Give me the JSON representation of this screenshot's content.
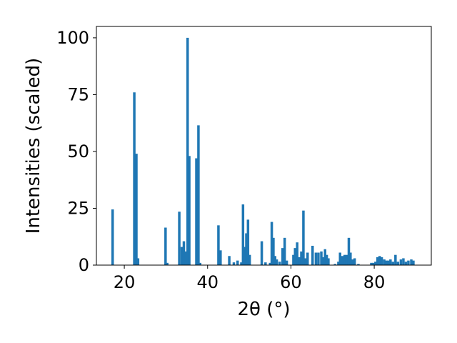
{
  "chart_data": {
    "type": "bar",
    "xlabel": "2θ (°)",
    "ylabel": "Intensities (scaled)",
    "xlim": [
      13.3,
      93.7
    ],
    "ylim": [
      0,
      105
    ],
    "xticks": [
      20,
      40,
      60,
      80
    ],
    "yticks": [
      0,
      25,
      50,
      75,
      100
    ],
    "grid": false,
    "bar_color": "#1f77b4",
    "bar_width": 0.6,
    "x": [
      17.2,
      22.4,
      22.9,
      23.3,
      29.9,
      30.3,
      33.2,
      33.8,
      34.3,
      34.8,
      35.2,
      35.6,
      37.3,
      37.8,
      38.2,
      42.6,
      43.1,
      45.2,
      46.3,
      47.2,
      48.1,
      48.5,
      48.9,
      49.3,
      49.7,
      50.1,
      53.0,
      53.9,
      55.0,
      55.4,
      55.8,
      56.2,
      56.6,
      57.3,
      58.0,
      58.5,
      59.0,
      60.6,
      61.0,
      61.5,
      62.0,
      62.5,
      63.0,
      63.5,
      64.0,
      65.2,
      66.0,
      66.6,
      67.3,
      67.8,
      68.2,
      68.6,
      69.0,
      70.6,
      71.4,
      71.8,
      72.4,
      72.9,
      73.4,
      73.9,
      74.3,
      74.8,
      75.3,
      76.2,
      79.3,
      79.8,
      80.3,
      80.8,
      81.3,
      81.8,
      82.4,
      82.9,
      83.4,
      83.9,
      84.5,
      85.1,
      85.7,
      86.4,
      87.0,
      87.6,
      88.2,
      88.9,
      89.4
    ],
    "values": [
      24.5,
      76,
      49,
      3,
      16.5,
      1,
      23.5,
      8,
      10.5,
      6,
      100,
      48,
      47,
      61.5,
      1,
      17.5,
      6.5,
      4,
      1.2,
      2,
      1.2,
      26.7,
      8,
      14,
      20,
      4.5,
      10.5,
      1.2,
      1,
      19,
      12,
      4,
      2.5,
      1.5,
      7.5,
      12,
      2,
      4.5,
      7.5,
      10,
      3.5,
      6,
      24,
      3,
      5.5,
      8.5,
      5.5,
      5.5,
      6,
      3.5,
      7,
      4.5,
      3,
      0.5,
      1.5,
      5.5,
      4,
      4.5,
      4.5,
      12,
      5.5,
      2.5,
      3,
      0.5,
      1,
      1,
      1.5,
      3.5,
      4,
      3.5,
      2.5,
      2,
      2,
      2.5,
      1.5,
      4.5,
      1.5,
      2.5,
      3,
      1.5,
      2,
      2.5,
      2
    ]
  }
}
